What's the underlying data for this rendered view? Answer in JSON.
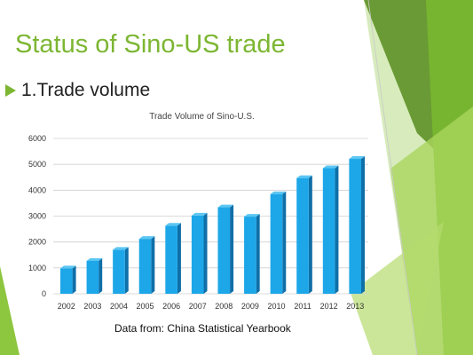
{
  "slide": {
    "title": "Status of Sino-US trade",
    "bullet": "1.Trade volume",
    "source": "Data from: China Statistical Yearbook",
    "accent_color": "#7cb632",
    "bullet_icon": "triangle-arrow-icon"
  },
  "chart_data": {
    "type": "bar",
    "title": "Trade Volume of Sino-U.S.",
    "xlabel": "",
    "ylabel": "",
    "categories": [
      "2002",
      "2003",
      "2004",
      "2005",
      "2006",
      "2007",
      "2008",
      "2009",
      "2010",
      "2011",
      "2012",
      "2013"
    ],
    "values": [
      980,
      1270,
      1700,
      2120,
      2630,
      3020,
      3340,
      2980,
      3850,
      4470,
      4850,
      5210
    ],
    "ylim": [
      0,
      6000
    ],
    "yticks": [
      0,
      1000,
      2000,
      3000,
      4000,
      5000,
      6000
    ],
    "grid": true,
    "legend": "none",
    "bar_color": "#1da7e8"
  }
}
